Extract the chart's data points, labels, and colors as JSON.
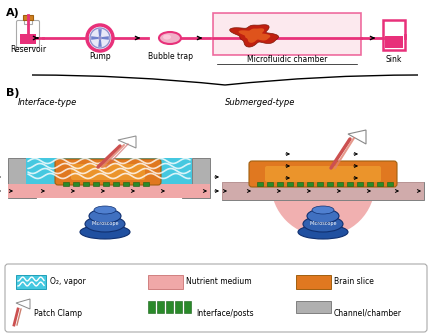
{
  "bg_color": "#ffffff",
  "pink_line": "#e8317a",
  "pink_light": "#f5c0d0",
  "pink_nutrient": "#f0a8a8",
  "cyan_o2": "#45c8e0",
  "orange_brain": "#e07820",
  "orange_bright": "#f0a030",
  "gray_chamber": "#b0b0b0",
  "gray_dark": "#808080",
  "green_posts": "#2a8a2a",
  "label_A": "A)",
  "label_B": "B)",
  "reservoir_label": "Reservoir",
  "pump_label": "Pump",
  "bubble_label": "Bubble trap",
  "chamber_label": "Microfluidic chamber",
  "sink_label": "Sink",
  "interface_label": "Interface-type",
  "submerged_label": "Submerged-type",
  "microscope_label": "Microscope",
  "legend_o2": "O₂, vapor",
  "legend_nutrient": "Nutrient medium",
  "legend_brain": "Brain slice",
  "legend_patch": "Patch Clamp",
  "legend_posts": "Interface/posts",
  "legend_channel": "Channel/chamber"
}
